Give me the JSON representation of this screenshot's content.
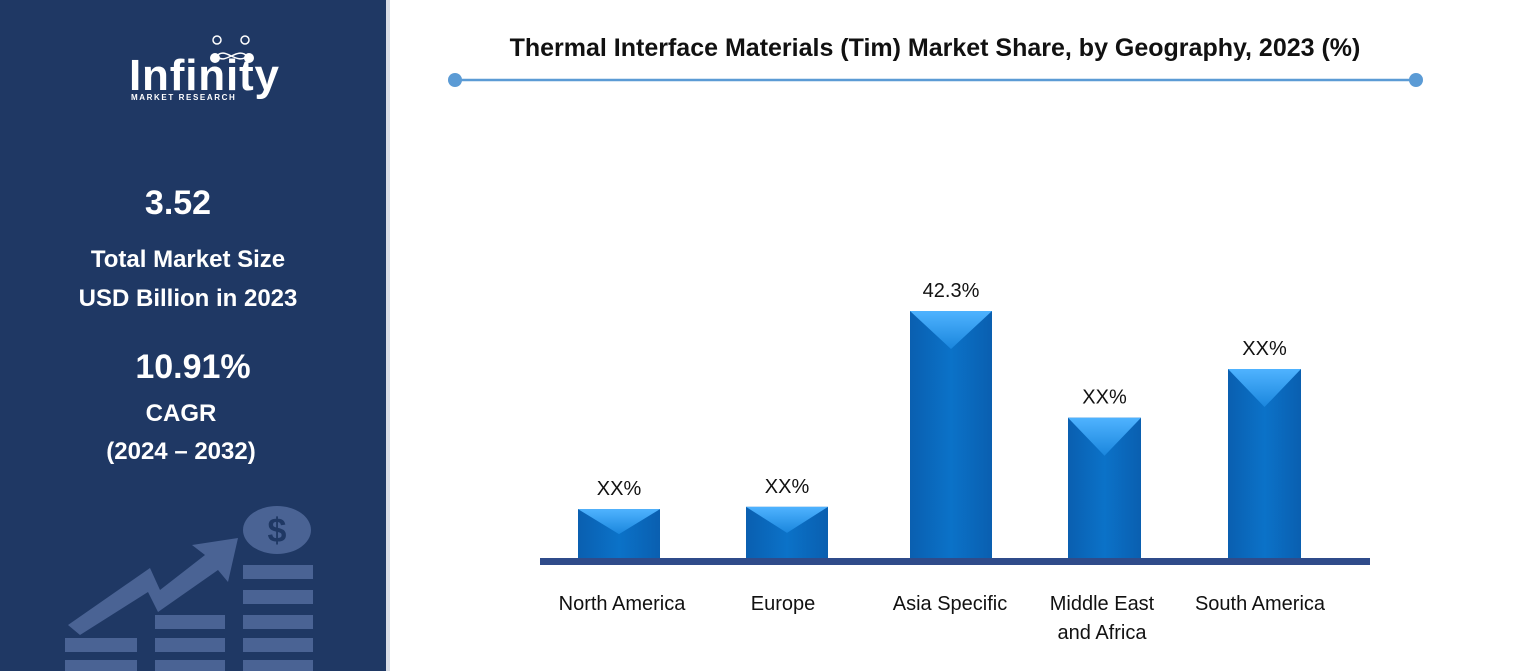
{
  "brand": {
    "name": "Infinity",
    "tagline": "MARKET RESEARCH"
  },
  "sidebar": {
    "market_size": "3.52",
    "market_size_label_1": "Total Market Size",
    "market_size_label_2": "USD Billion in 2023",
    "cagr": "10.91%",
    "cagr_label": "CAGR",
    "cagr_period": "(2024 – 2032)"
  },
  "colors": {
    "sidebar": "#1f3864",
    "bar": "#0b6fc4",
    "bar_top": "#3fa9f5",
    "baseline": "#2f4b8a",
    "title_rule": "#5b9bd5"
  },
  "chart_data": {
    "type": "bar",
    "title": "Thermal Interface Materials (Tim) Market Share, by Geography, 2023 (%)",
    "categories": [
      "North America",
      "Europe",
      "Asia Specific",
      "Middle East and Africa",
      "South America"
    ],
    "category_lines": [
      [
        "North America"
      ],
      [
        "Europe"
      ],
      [
        "Asia Specific"
      ],
      [
        "Middle East",
        "and Africa"
      ],
      [
        "South America"
      ]
    ],
    "values": [
      8.5,
      8.9,
      42.3,
      24.1,
      32.4
    ],
    "data_labels": [
      "XX%",
      "XX%",
      "42.3%",
      "XX%",
      "XX%"
    ],
    "ylim": [
      0,
      42.3
    ],
    "grid": false,
    "legend": "none"
  }
}
